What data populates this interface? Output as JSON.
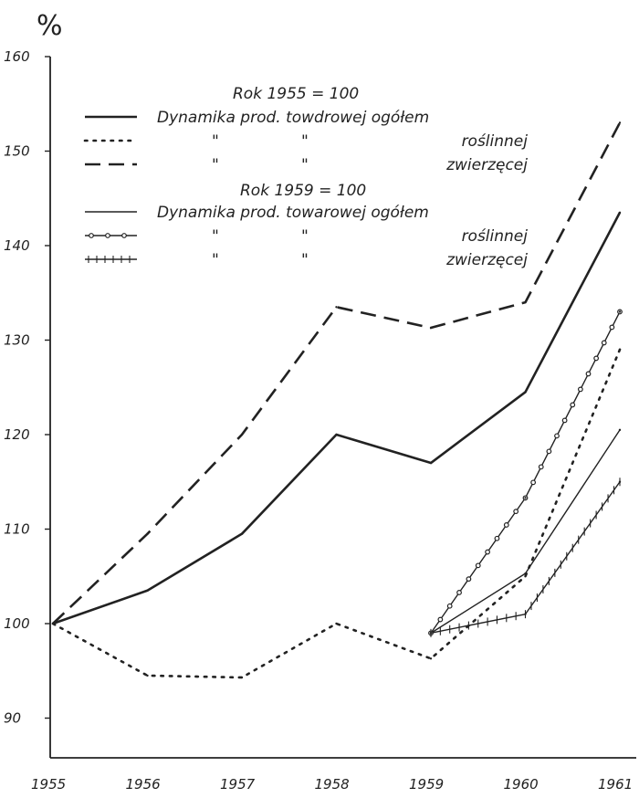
{
  "chart_data": {
    "type": "line",
    "ylabel": "%",
    "ylim": [
      85,
      160
    ],
    "yticks": [
      90,
      100,
      110,
      120,
      130,
      140,
      150,
      160
    ],
    "ytick_labels": [
      "90",
      "100",
      "110",
      "120",
      "130",
      "140",
      "150",
      "160"
    ],
    "categories": [
      "1955",
      "1956",
      "1957",
      "1958",
      "1959",
      "1960",
      "1961"
    ],
    "grid": false,
    "legend_position": "top-center",
    "legend": {
      "group1_title": "Rok 1955 = 100",
      "group2_title": "Rok 1959 = 100",
      "entries": [
        {
          "text": "Dynamika prod. towdrowej ogółem",
          "col1": "",
          "col2": "",
          "style": "thick-solid"
        },
        {
          "text": "roślinnej",
          "col1": "\"",
          "col2": "\"",
          "style": "dotted"
        },
        {
          "text": "zwierzęcej",
          "col1": "\"",
          "col2": "\"",
          "style": "dashed"
        },
        {
          "text": "Dynamika prod. towarowej ogółem",
          "col1": "",
          "col2": "",
          "style": "thin-solid"
        },
        {
          "text": "roślinnej",
          "col1": "\"",
          "col2": "\"",
          "style": "circles"
        },
        {
          "text": "zwierzęcej",
          "col1": "\"",
          "col2": "\"",
          "style": "crosses"
        }
      ]
    },
    "series": [
      {
        "style": "thick-solid",
        "x": [
          "1955",
          "1956",
          "1957",
          "1958",
          "1959",
          "1960",
          "1961"
        ],
        "values": [
          100,
          103.5,
          109.5,
          120,
          117,
          124.5,
          143.5
        ]
      },
      {
        "style": "dotted",
        "x": [
          "1955",
          "1956",
          "1957",
          "1958",
          "1959",
          "1960",
          "1961"
        ],
        "values": [
          100,
          94.5,
          94.3,
          100,
          96.3,
          105,
          129
        ]
      },
      {
        "style": "dashed",
        "x": [
          "1955",
          "1956",
          "1957",
          "1958",
          "1959",
          "1960",
          "1961"
        ],
        "values": [
          100,
          109.5,
          120,
          133.5,
          131.3,
          134,
          153
        ]
      },
      {
        "style": "thin-solid",
        "x": [
          "1959",
          "1960",
          "1961"
        ],
        "values": [
          99,
          105.3,
          120.5
        ]
      },
      {
        "style": "circles",
        "x": [
          "1959",
          "1960",
          "1961"
        ],
        "values": [
          99,
          113.3,
          133
        ]
      },
      {
        "style": "crosses",
        "x": [
          "1959",
          "1960",
          "1961"
        ],
        "values": [
          99,
          101,
          115
        ]
      }
    ]
  }
}
